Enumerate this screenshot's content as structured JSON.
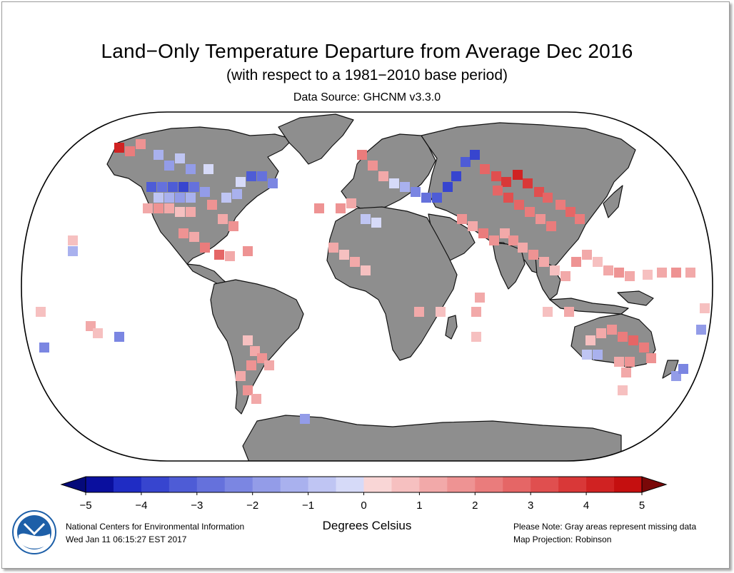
{
  "title": "Land−Only Temperature Departure from Average Dec 2016",
  "subtitle": "(with respect to a 1981−2010 base period)",
  "source": "Data Source: GHCNM v3.3.0",
  "colorbar": {
    "label": "Degrees Celsius",
    "ticks": [
      "−5",
      "−4",
      "−3",
      "−2",
      "−1",
      "0",
      "1",
      "2",
      "3",
      "4",
      "5"
    ],
    "colors": [
      "#0a0f9e",
      "#1f2cc4",
      "#3745cf",
      "#4e5cd6",
      "#6571dc",
      "#7b86e2",
      "#939ce8",
      "#a9b1ee",
      "#bfc5f3",
      "#d6daf8",
      "#f9d6d6",
      "#f6c0c0",
      "#f2a9a9",
      "#ee9393",
      "#ea7c7c",
      "#e56666",
      "#e04f4f",
      "#d93838",
      "#d02222",
      "#c50f0f"
    ],
    "under_color": "#050a7a",
    "over_color": "#7a0808"
  },
  "footer": {
    "org": "National Centers for Environmental Information",
    "timestamp": "Wed Jan 11 06:15:27 EST 2017",
    "note": "Please Note: Gray areas represent missing data",
    "projection": "Map Projection: Robinson"
  },
  "logo": {
    "text": "NOAA"
  }
}
